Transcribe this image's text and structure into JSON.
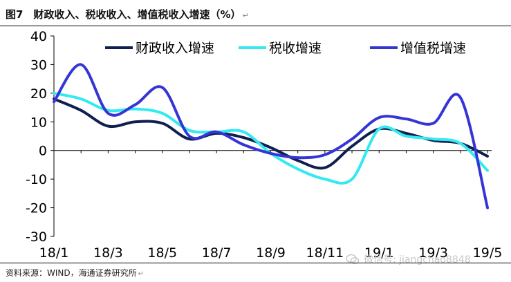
{
  "header": {
    "title": "图7　财政收入、税收收入、增值税收入增速（%）"
  },
  "footer": {
    "source": "资料来源：WIND，海通证券研究所"
  },
  "watermark": {
    "text": "微信号: jiangchao8848"
  },
  "colors": {
    "fiscal": "#0f1f4f",
    "tax": "#33eaf0",
    "vat": "#3535d6",
    "axis": "#000000"
  },
  "chart_data": {
    "type": "line",
    "ylim": [
      -30,
      40
    ],
    "yticks": [
      40,
      30,
      20,
      10,
      0,
      -10,
      -20,
      -30
    ],
    "x": [
      "18/1",
      "18/2",
      "18/3",
      "18/4",
      "18/5",
      "18/6",
      "18/7",
      "18/8",
      "18/9",
      "18/10",
      "18/11",
      "18/12",
      "19/1",
      "19/2",
      "19/3",
      "19/4",
      "19/5"
    ],
    "xtick_labels": [
      "18/1",
      "18/3",
      "18/5",
      "18/7",
      "18/9",
      "18/11",
      "19/1",
      "19/3",
      "19/5"
    ],
    "xtick_index": [
      0,
      2,
      4,
      6,
      8,
      10,
      12,
      14,
      16
    ],
    "legend_position": "top",
    "series": [
      {
        "name": "财政收入增速",
        "color": "#0f1f4f",
        "values": [
          18,
          14,
          8.5,
          10,
          9.5,
          4,
          6,
          4.5,
          1,
          -3.5,
          -6,
          1.5,
          7.5,
          6,
          3.5,
          2.5,
          -2
        ]
      },
      {
        "name": "税收增速",
        "color": "#33eaf0",
        "values": [
          20,
          18,
          14,
          14.5,
          13,
          7,
          6.5,
          6.5,
          -1,
          -6.5,
          -10,
          -10,
          7.5,
          5,
          4,
          2.5,
          -7
        ]
      },
      {
        "name": "增值税增速",
        "color": "#3535d6",
        "values": [
          17,
          30,
          13,
          16,
          22,
          5,
          6.5,
          2,
          -1,
          -2.5,
          -1.5,
          4,
          11.5,
          11,
          9.5,
          18.5,
          -20
        ]
      }
    ]
  }
}
